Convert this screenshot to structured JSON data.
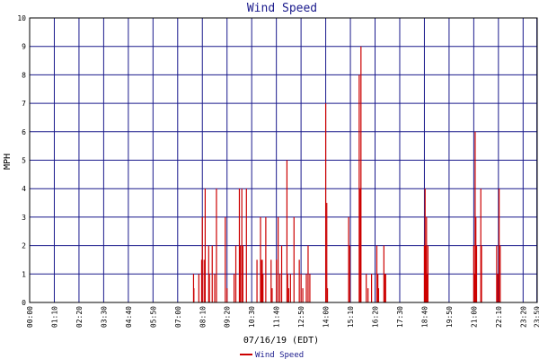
{
  "chart_data": {
    "type": "bar",
    "title": "Wind Speed",
    "xlabel": "07/16/19 (EDT)",
    "ylabel": "MPH",
    "ylim": [
      0,
      10
    ],
    "yticks": [
      "0",
      "1",
      "2",
      "3",
      "4",
      "5",
      "6",
      "7",
      "8",
      "9",
      "10"
    ],
    "xlim_minutes": [
      0,
      1440
    ],
    "xticks": [
      "00:00",
      "01:10",
      "02:20",
      "03:30",
      "04:40",
      "05:50",
      "07:00",
      "08:10",
      "09:20",
      "10:30",
      "11:40",
      "12:50",
      "14:00",
      "15:10",
      "16:20",
      "17:30",
      "18:40",
      "19:50",
      "21:00",
      "22:10",
      "23:20",
      "23:59"
    ],
    "grid": true,
    "legend_position": "bottom",
    "colors": {
      "series": "#cc0000",
      "grid": "#1a1a8c",
      "title": "#1a1a8c",
      "frame": "#000000"
    },
    "series": [
      {
        "name": "Wind Speed",
        "x_time": [
          "07:45",
          "07:46",
          "08:00",
          "08:08",
          "08:10",
          "08:15",
          "08:18",
          "08:28",
          "08:30",
          "08:38",
          "08:45",
          "08:50",
          "09:15",
          "09:20",
          "09:40",
          "09:45",
          "09:55",
          "09:58",
          "10:02",
          "10:05",
          "10:15",
          "10:45",
          "10:55",
          "10:57",
          "10:59",
          "11:00",
          "11:02",
          "11:10",
          "11:25",
          "11:28",
          "11:40",
          "11:45",
          "11:50",
          "11:55",
          "12:10",
          "12:12",
          "12:15",
          "12:20",
          "12:30",
          "12:45",
          "12:50",
          "12:55",
          "13:05",
          "13:10",
          "13:15",
          "14:00",
          "14:03",
          "14:05",
          "15:05",
          "15:08",
          "15:35",
          "15:38",
          "15:40",
          "15:55",
          "16:00",
          "16:10",
          "16:25",
          "16:28",
          "16:30",
          "16:45",
          "16:48",
          "16:50",
          "18:40",
          "18:42",
          "18:44",
          "18:46",
          "18:48",
          "18:50",
          "21:00",
          "21:02",
          "21:04",
          "21:06",
          "21:08",
          "21:20",
          "21:22",
          "22:05",
          "22:08",
          "22:12",
          "22:15"
        ],
        "y": [
          1.0,
          0.5,
          1.0,
          1.5,
          3.0,
          1.5,
          4.0,
          2.0,
          1.0,
          2.0,
          1.0,
          4.0,
          3.0,
          0.5,
          1.0,
          2.0,
          4.0,
          2.0,
          4.0,
          2.0,
          4.0,
          1.5,
          3.0,
          1.5,
          1.0,
          1.5,
          1.0,
          3.0,
          1.5,
          0.5,
          1.5,
          3.0,
          1.0,
          2.0,
          5.0,
          1.0,
          0.5,
          1.0,
          3.0,
          1.5,
          1.0,
          0.5,
          1.0,
          2.0,
          1.0,
          7.0,
          3.5,
          0.5,
          3.0,
          2.0,
          8.0,
          4.0,
          9.0,
          1.0,
          0.5,
          1.0,
          2.0,
          1.0,
          0.5,
          2.0,
          1.0,
          1.0,
          2.0,
          4.0,
          2.0,
          3.0,
          1.0,
          2.0,
          2.0,
          1.0,
          6.0,
          3.0,
          2.0,
          4.0,
          2.0,
          2.0,
          1.0,
          4.0,
          2.0
        ]
      }
    ]
  }
}
